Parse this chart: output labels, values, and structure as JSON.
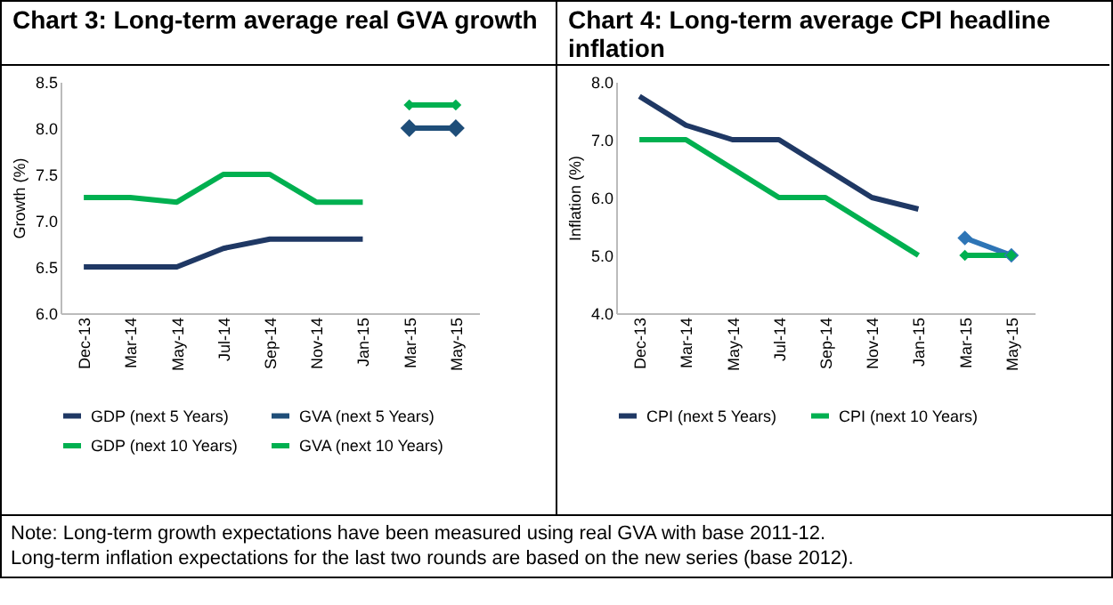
{
  "chart_data": [
    {
      "type": "line",
      "title": "Chart 3: Long-term average real GVA growth",
      "ylabel": "Growth (%)",
      "categories": [
        "Dec-13",
        "Mar-14",
        "May-14",
        "Jul-14",
        "Sep-14",
        "Nov-14",
        "Jan-15",
        "Mar-15",
        "May-15"
      ],
      "series": [
        {
          "name": "GDP (next 5 Years)",
          "color": "#1f3864",
          "values": [
            6.5,
            6.5,
            6.5,
            6.7,
            6.8,
            6.8,
            6.8,
            null,
            null
          ]
        },
        {
          "name": "GVA (next 5 Years)",
          "color": "#1f4e79",
          "marker": "diamond",
          "values": [
            null,
            null,
            null,
            null,
            null,
            null,
            null,
            8.0,
            8.0
          ]
        },
        {
          "name": "GDP (next 10 Years)",
          "color": "#00b050",
          "values": [
            7.25,
            7.25,
            7.2,
            7.5,
            7.5,
            7.2,
            7.2,
            null,
            null
          ]
        },
        {
          "name": "GVA (next 10 Years)",
          "color": "#00b050",
          "marker": "diamond",
          "values": [
            null,
            null,
            null,
            null,
            null,
            null,
            null,
            8.25,
            8.25
          ]
        }
      ],
      "ylim": [
        6.0,
        8.5
      ],
      "yticks": [
        {
          "value": 6.0,
          "label": "6.0"
        },
        {
          "value": 6.5,
          "label": "6.5"
        },
        {
          "value": 7.0,
          "label": "7.0"
        },
        {
          "value": 7.5,
          "label": "7.5"
        },
        {
          "value": 8.0,
          "label": "8.0"
        },
        {
          "value": 8.5,
          "label": "8.5"
        }
      ],
      "grid": false,
      "legend": "bottom",
      "annotations": [
        "Note: Long-term growth expectations have been measured using real GVA with base 2011-12.",
        "Long-term inflation expectations for the last two rounds are based on the new series (base 2012)."
      ]
    },
    {
      "type": "line",
      "title": "Chart 4: Long-term average CPI headline inflation",
      "ylabel": "Inflation (%)",
      "categories": [
        "Dec-13",
        "Mar-14",
        "May-14",
        "Jul-14",
        "Sep-14",
        "Nov-14",
        "Jan-15",
        "Mar-15",
        "May-15"
      ],
      "series": [
        {
          "name": "CPI (next 5 Years)",
          "color": "#1f3864",
          "values": [
            7.75,
            7.25,
            7.0,
            7.0,
            6.5,
            6.0,
            5.8,
            null,
            null
          ]
        },
        {
          "name": "CPI (next 10 Years)",
          "color": "#00b050",
          "values": [
            7.0,
            7.0,
            6.5,
            6.0,
            6.0,
            5.5,
            5.0,
            null,
            null
          ]
        },
        {
          "color": "#2e75b6",
          "marker": "diamond",
          "values": [
            null,
            null,
            null,
            null,
            null,
            null,
            null,
            5.3,
            5.0
          ]
        },
        {
          "color": "#00b050",
          "marker": "diamond",
          "values": [
            null,
            null,
            null,
            null,
            null,
            null,
            null,
            5.0,
            5.0
          ]
        }
      ],
      "ylim": [
        4.0,
        8.0
      ],
      "yticks": [
        {
          "value": 4.0,
          "label": "4.0"
        },
        {
          "value": 5.0,
          "label": "5.0"
        },
        {
          "value": 6.0,
          "label": "6.0"
        },
        {
          "value": 7.0,
          "label": "7.0"
        },
        {
          "value": 8.0,
          "label": "8.0"
        }
      ],
      "grid": false,
      "legend": "bottom"
    }
  ]
}
